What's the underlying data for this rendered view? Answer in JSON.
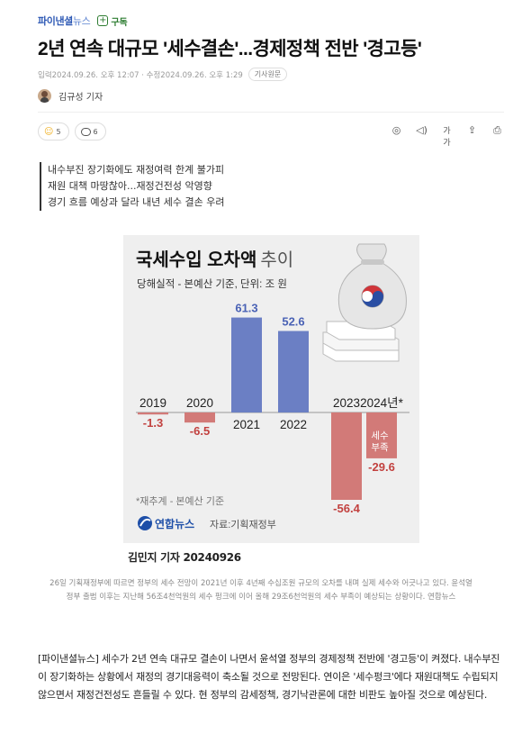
{
  "header": {
    "logo_main": "파이낸셜",
    "logo_sub": "뉴스",
    "subscribe_label": "구독"
  },
  "article": {
    "headline": "2년 연속 대규모 '세수결손'...경제정책 전반 '경고등'",
    "dates": "입력2024.09.26. 오후 12:07 · 수정2024.09.26. 오후 1:29",
    "original_button": "기사원문",
    "author": "김규성 기자",
    "reaction_count": "5",
    "comment_count": "6",
    "summary": [
      "내수부진 장기화에도 재정여력 한계 불가피",
      "재원 대책 마땅찮아...재정건전성 악영향",
      "경기 흐름 예상과 달라 내년 세수 결손 우려"
    ],
    "image_credit": "김민지 기자  20240926",
    "caption": "26일 기획재정부에 따르면 정부의 세수 전망이 2021년 이후 4년째 수십조원 규모의 오차를 내며 실제 세수와 어긋나고 있다. 윤석열 정부 출범 이후는 지난해 56조4천억원의 세수 펑크에 이어 올해 29조6천억원의 세수 부족이 예상되는 상황이다. 연합뉴스",
    "body": "[파이낸셜뉴스] 세수가 2년 연속 대규모 결손이 나면서 윤석열 정부의 경제정책 전반에 '경고등'이 켜졌다. 내수부진이 장기화하는 상황에서 재정의 경기대응력이 축소될 것으로 전망된다. 연이은 '세수펑크'에다 재원대책도 수립되지 않으면서 재정건전성도 흔들릴 수 있다. 현 정부의 감세정책, 경기낙관론에 대한 비판도 높아질 것으로 예상된다."
  },
  "toolbar": {
    "icons": [
      "audio-icon",
      "tts-icon",
      "font-size-icon",
      "share-icon",
      "print-icon"
    ],
    "font_size_label": "가가"
  },
  "chart_data": {
    "type": "bar",
    "title_bold": "국세수입 오차액",
    "title_light": "추이",
    "subtitle": "당해실적 - 본예산 기준, 단위: 조 원",
    "categories": [
      "2019",
      "2020",
      "2021",
      "2022",
      "2023",
      "2024년*"
    ],
    "values": [
      -1.3,
      -6.5,
      61.3,
      52.6,
      -56.4,
      -29.6
    ],
    "value_labels": [
      "-1.3",
      "-6.5",
      "61.3",
      "52.6",
      "-56.4",
      "-29.6"
    ],
    "colors": {
      "positive": "#6b7fc4",
      "negative": "#d27a78",
      "positive_label": "#4a62b5",
      "negative_label": "#c2413f"
    },
    "annotation": "세수\n부족",
    "footnote": "*재추계 - 본예산 기준",
    "source_logo": "연합뉴스",
    "source": "자료:기획재정부"
  }
}
